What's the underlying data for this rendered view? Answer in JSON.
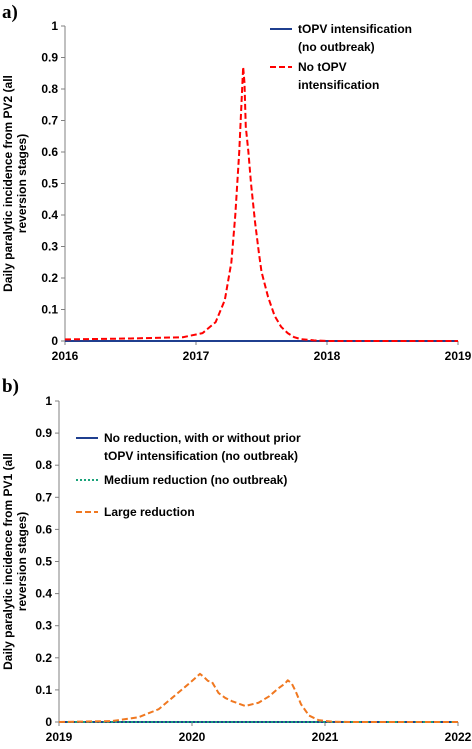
{
  "chart_data": [
    {
      "panel_label": "a)",
      "type": "line",
      "title": "",
      "xlabel": "",
      "ylabel": "Daily paralytic incidence from PV2 (all reversion stages)",
      "ylim": [
        0,
        1
      ],
      "xlim": [
        2016,
        2019
      ],
      "x_ticks": [
        "2016",
        "2017",
        "2018",
        "2019"
      ],
      "y_ticks": [
        "0",
        "0.1",
        "0.2",
        "0.3",
        "0.4",
        "0.5",
        "0.6",
        "0.7",
        "0.8",
        "0.9",
        "1"
      ],
      "grid": false,
      "legend_position": "top-right",
      "series": [
        {
          "name": "tOPV intensification (no outbreak)",
          "color": "#1f3f8f",
          "dash": "solid",
          "x": [
            2016.0,
            2019.0
          ],
          "y": [
            0.0,
            0.0
          ]
        },
        {
          "name": "No tOPV intensification",
          "color": "#ff0000",
          "dash": "dashed",
          "x": [
            2016.0,
            2016.5,
            2016.9,
            2017.05,
            2017.15,
            2017.22,
            2017.27,
            2017.3,
            2017.33,
            2017.35,
            2017.36,
            2017.37,
            2017.38,
            2017.4,
            2017.42,
            2017.45,
            2017.48,
            2017.5,
            2017.55,
            2017.6,
            2017.65,
            2017.7,
            2017.75,
            2017.8,
            2017.9,
            2018.0,
            2018.2,
            2019.0
          ],
          "y": [
            0.005,
            0.008,
            0.012,
            0.025,
            0.06,
            0.13,
            0.25,
            0.4,
            0.6,
            0.78,
            0.87,
            0.82,
            0.68,
            0.6,
            0.5,
            0.38,
            0.28,
            0.22,
            0.14,
            0.08,
            0.045,
            0.025,
            0.012,
            0.006,
            0.002,
            0.0,
            0.0,
            0.0
          ]
        }
      ]
    },
    {
      "panel_label": "b)",
      "type": "line",
      "title": "",
      "xlabel": "",
      "ylabel": "Daily paralytic incidence from PV1 (all reversion stages)",
      "ylim": [
        0,
        1
      ],
      "xlim": [
        2019,
        2022
      ],
      "x_ticks": [
        "2019",
        "2020",
        "2021",
        "2022"
      ],
      "y_ticks": [
        "0",
        "0.1",
        "0.2",
        "0.3",
        "0.4",
        "0.5",
        "0.6",
        "0.7",
        "0.8",
        "0.9",
        "1"
      ],
      "grid": false,
      "legend_position": "top-left",
      "series": [
        {
          "name": "No reduction, with or without prior tOPV intensification (no outbreak)",
          "color": "#1f3f8f",
          "dash": "solid",
          "x": [
            2019.0,
            2022.0
          ],
          "y": [
            0.0,
            0.0
          ]
        },
        {
          "name": "Medium reduction (no outbreak)",
          "color": "#1aa37a",
          "dash": "dotted",
          "x": [
            2019.0,
            2022.0
          ],
          "y": [
            0.0,
            0.0
          ]
        },
        {
          "name": "Large reduction",
          "color": "#f07820",
          "dash": "dashed",
          "x": [
            2019.0,
            2019.4,
            2019.6,
            2019.75,
            2019.85,
            2019.95,
            2020.02,
            2020.06,
            2020.09,
            2020.12,
            2020.15,
            2020.2,
            2020.25,
            2020.3,
            2020.4,
            2020.5,
            2020.58,
            2020.65,
            2020.7,
            2020.72,
            2020.75,
            2020.78,
            2020.82,
            2020.88,
            2020.95,
            2021.05,
            2021.2,
            2022.0
          ],
          "y": [
            0.0,
            0.003,
            0.015,
            0.04,
            0.075,
            0.11,
            0.135,
            0.15,
            0.14,
            0.128,
            0.125,
            0.09,
            0.075,
            0.065,
            0.05,
            0.06,
            0.08,
            0.105,
            0.12,
            0.13,
            0.12,
            0.095,
            0.055,
            0.02,
            0.006,
            0.001,
            0.0,
            0.0
          ]
        }
      ]
    }
  ],
  "legend_a": [
    {
      "lines": [
        "tOPV intensification",
        "(no outbreak)"
      ]
    },
    {
      "lines": [
        "No tOPV",
        "intensification"
      ]
    }
  ],
  "legend_b": [
    {
      "lines": [
        "No reduction, with or without prior",
        "tOPV intensification (no outbreak)"
      ]
    },
    {
      "lines": [
        "Medium reduction (no outbreak)"
      ]
    },
    {
      "lines": [
        "Large reduction"
      ]
    }
  ],
  "ylabel_lines_a": [
    "Daily paralytic incidence from PV2 (all",
    "reversion stages)"
  ],
  "ylabel_lines_b": [
    "Daily paralytic incidence from PV1 (all",
    "reversion stages)"
  ]
}
